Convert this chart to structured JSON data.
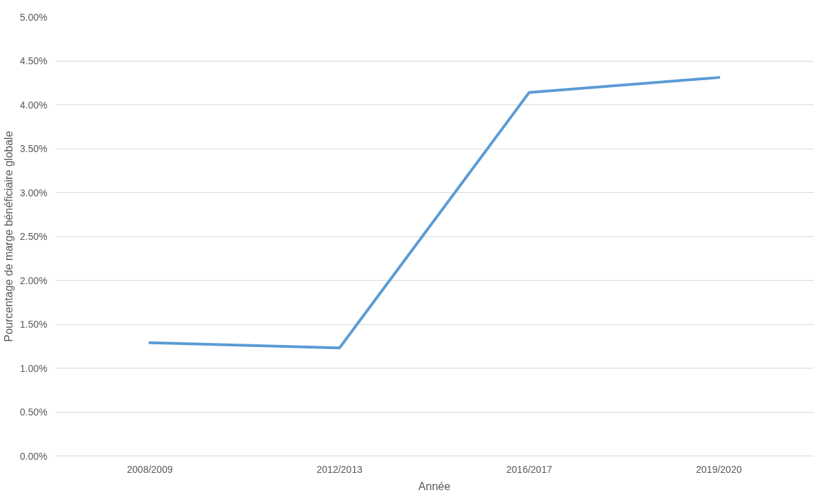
{
  "chart_data": {
    "type": "line",
    "xlabel": "Année",
    "ylabel": "Pourcentage de marge bénéficiaire globale",
    "categories": [
      "2008/2009",
      "2012/2013",
      "2016/2017",
      "2019/2020"
    ],
    "series": [
      {
        "color": "#5b9bd5",
        "values": [
          1.29,
          1.23,
          4.14,
          4.31
        ]
      }
    ],
    "ylim": [
      0,
      5
    ],
    "yticks": [
      {
        "value": 0,
        "label": "0.00%"
      },
      {
        "value": 0.5,
        "label": "0.50%"
      },
      {
        "value": 1,
        "label": "1.00%"
      },
      {
        "value": 1.5,
        "label": "1.50%"
      },
      {
        "value": 2,
        "label": "2.00%"
      },
      {
        "value": 2.5,
        "label": "2.50%"
      },
      {
        "value": 3,
        "label": "3.00%"
      },
      {
        "value": 3.5,
        "label": "3.50%"
      },
      {
        "value": 4,
        "label": "4.00%"
      },
      {
        "value": 4.5,
        "label": "4.50%"
      },
      {
        "value": 5,
        "label": "5.00%"
      }
    ],
    "grid": "y",
    "marker": "none",
    "line_style": "solid"
  }
}
